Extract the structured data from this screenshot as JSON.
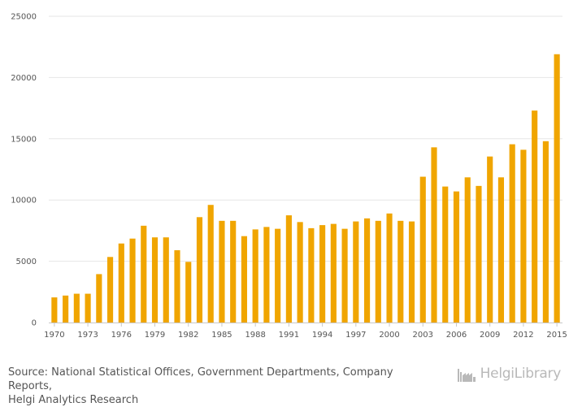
{
  "colors": {
    "bar": "#f0a500",
    "grid": "#e6e6e6",
    "text": "#555555",
    "logo": "#b9b9b9"
  },
  "chart_data": {
    "type": "bar",
    "title": "",
    "xlabel": "",
    "ylabel": "",
    "ylim": [
      0,
      25000
    ],
    "yticks": [
      "0",
      "5000",
      "10000",
      "15000",
      "20000",
      "25000"
    ],
    "ytick_values": [
      0,
      5000,
      10000,
      15000,
      20000,
      25000
    ],
    "xtick_labels": [
      "1970",
      "1973",
      "1976",
      "1979",
      "1982",
      "1985",
      "1988",
      "1991",
      "1994",
      "1997",
      "2000",
      "2003",
      "2006",
      "2009",
      "2012",
      "2015"
    ],
    "categories": [
      1970,
      1971,
      1972,
      1973,
      1974,
      1975,
      1976,
      1977,
      1978,
      1979,
      1980,
      1981,
      1982,
      1983,
      1984,
      1985,
      1986,
      1987,
      1988,
      1989,
      1990,
      1991,
      1992,
      1993,
      1994,
      1995,
      1996,
      1997,
      1998,
      1999,
      2000,
      2001,
      2002,
      2003,
      2004,
      2005,
      2006,
      2007,
      2008,
      2009,
      2010,
      2011,
      2012,
      2013,
      2014,
      2015
    ],
    "values": [
      2050,
      2200,
      2350,
      2350,
      3950,
      5350,
      6450,
      6850,
      7900,
      6950,
      6950,
      5900,
      4950,
      8600,
      9600,
      8300,
      8300,
      7050,
      7600,
      7800,
      7650,
      8750,
      8200,
      7700,
      7950,
      8050,
      7650,
      8250,
      8500,
      8300,
      8900,
      8300,
      8250,
      11900,
      14300,
      11100,
      10700,
      11850,
      11150,
      13550,
      11850,
      14550,
      14100,
      17300,
      14800,
      21900
    ]
  },
  "footer": {
    "source_line1": "Source: National Statistical Offices, Government Departments, Company Reports,",
    "source_line2": "Helgi Analytics Research",
    "logo_icon": "factory-icon",
    "logo_text": "HelgiLibrary"
  }
}
